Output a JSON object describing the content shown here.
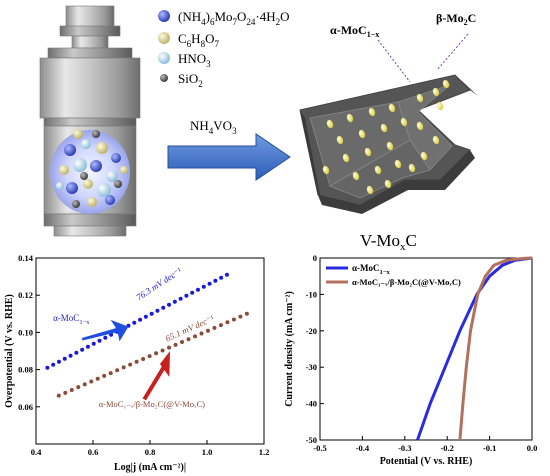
{
  "schematic": {
    "reagents": [
      {
        "label": "(NH",
        "sub1": "4",
        "mid": ")",
        "sub2": "6",
        "rest": "Mo",
        "sub3": "7",
        "rest2": "O",
        "sub4": "24",
        "rest3": "·4H",
        "sub5": "2",
        "rest4": "O",
        "color": "#3a4fc2"
      },
      {
        "label": "C",
        "sub1": "6",
        "mid": "H",
        "sub2": "8",
        "rest": "O",
        "sub3": "7",
        "rest2": "",
        "sub4": "",
        "rest3": "",
        "sub5": "",
        "rest4": "",
        "color": "#d8cf8e"
      },
      {
        "label": "HNO",
        "sub1": "3",
        "mid": "",
        "sub2": "",
        "rest": "",
        "sub3": "",
        "rest2": "",
        "sub4": "",
        "rest3": "",
        "sub5": "",
        "rest4": "",
        "color": "#b9d7e8"
      },
      {
        "label": "SiO",
        "sub1": "2",
        "mid": "",
        "sub2": "",
        "rest": "",
        "sub3": "",
        "rest2": "",
        "sub4": "",
        "rest3": "",
        "sub5": "",
        "rest4": "",
        "color": "#6b6b6b"
      }
    ],
    "arrow_label": {
      "main": "NH",
      "sub1": "4",
      "mid": "VO",
      "sub2": "3"
    },
    "product_label": {
      "main": "V-Mo",
      "sub": "x",
      "end": "C"
    },
    "phase_alpha": {
      "main": "α-MoC",
      "sub": "1−x"
    },
    "phase_beta": {
      "main": "β-Mo",
      "sub": "2",
      "end": "C"
    }
  },
  "chart_data": [
    {
      "type": "scatter",
      "xlabel": "Log|j (mA cm⁻²)|",
      "ylabel": "Overpotential (V vs. RHE)",
      "xlim": [
        0.4,
        1.2
      ],
      "ylim": [
        0.04,
        0.14
      ],
      "xticks": [
        "0.4",
        "0.6",
        "0.8",
        "1.0",
        "1.2"
      ],
      "yticks": [
        "0.06",
        "0.08",
        "0.10",
        "0.12",
        "0.14"
      ],
      "series": [
        {
          "name": "α-MoC1−x",
          "color": "#1a1ad6",
          "x_start": 0.44,
          "x_end": 1.07,
          "y_start": 0.081,
          "y_end": 0.131,
          "n": 32,
          "slope_label": "76.3 mV dec⁻¹"
        },
        {
          "name": "α-MoC1−x/β-Mo2C(@V-MoxC)",
          "color": "#8b4a3a",
          "x_start": 0.48,
          "x_end": 1.14,
          "y_start": 0.066,
          "y_end": 0.11,
          "n": 30,
          "slope_label": "65.1 mV dec⁻¹"
        }
      ],
      "annotations": {
        "alpha_label": {
          "main": "α-MoC",
          "sub": "1−x"
        },
        "composite_label": "α-MoC₁₋ₓ/β-Mo₂C(@V-MoₓC)"
      }
    },
    {
      "type": "line",
      "xlabel": "Potential (V vs. RHE)",
      "ylabel": "Current density (mA cm⁻²)",
      "xlim": [
        -0.5,
        0.0
      ],
      "ylim": [
        -50,
        0
      ],
      "xticks": [
        "-0.5",
        "-0.4",
        "-0.3",
        "-0.2",
        "-0.1",
        "0.0"
      ],
      "yticks": [
        "-50",
        "-40",
        "-30",
        "-20",
        "-10",
        "0"
      ],
      "legend": "top-left",
      "series": [
        {
          "name": "α-MoC1−x",
          "color": "#2a2ae0",
          "points": [
            [
              -0.27,
              -50
            ],
            [
              -0.24,
              -40
            ],
            [
              -0.205,
              -30
            ],
            [
              -0.17,
              -20
            ],
            [
              -0.13,
              -10
            ],
            [
              -0.1,
              -5
            ],
            [
              -0.07,
              -2
            ],
            [
              -0.04,
              -0.6
            ],
            [
              0.0,
              0
            ]
          ]
        },
        {
          "name": "α-MoC1−x/β-Mo2C(@V-MoxC)",
          "color": "#b3705e",
          "points": [
            [
              -0.17,
              -50
            ],
            [
              -0.163,
              -40
            ],
            [
              -0.155,
              -30
            ],
            [
              -0.145,
              -20
            ],
            [
              -0.128,
              -10
            ],
            [
              -0.11,
              -5
            ],
            [
              -0.09,
              -2
            ],
            [
              -0.06,
              -0.6
            ],
            [
              -0.02,
              -0.1
            ],
            [
              0.0,
              0
            ]
          ]
        }
      ],
      "legend_labels": {
        "alpha": {
          "main": "α-MoC",
          "sub": "1−x"
        },
        "composite": "α-MoC₁₋ₓ/β-Mo₂C(@V-MoₓC)"
      }
    }
  ]
}
